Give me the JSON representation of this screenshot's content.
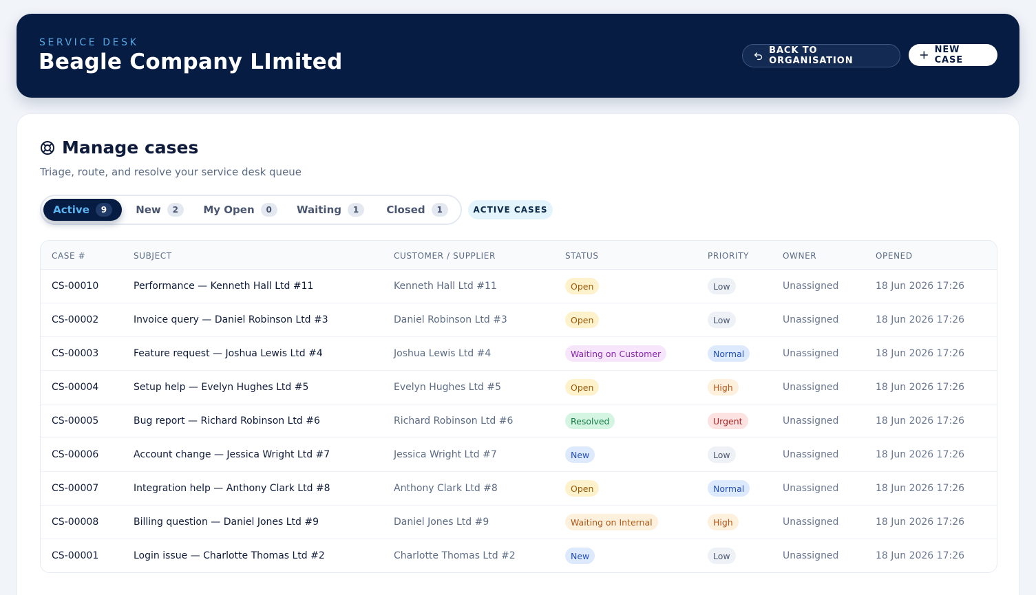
{
  "header": {
    "eyebrow": "SERVICE DESK",
    "org_name": "Beagle Company LImited",
    "back_label": "BACK TO ORGANISATION",
    "new_case_label": "NEW CASE"
  },
  "section": {
    "title": "Manage cases",
    "subtitle": "Triage, route, and resolve your service desk queue",
    "scope_label": "ACTIVE CASES"
  },
  "tabs": [
    {
      "label": "Active",
      "count": "9",
      "active": true
    },
    {
      "label": "New",
      "count": "2",
      "active": false
    },
    {
      "label": "My Open",
      "count": "0",
      "active": false
    },
    {
      "label": "Waiting",
      "count": "1",
      "active": false
    },
    {
      "label": "Closed",
      "count": "1",
      "active": false
    }
  ],
  "table": {
    "columns": [
      "CASE #",
      "SUBJECT",
      "CUSTOMER / SUPPLIER",
      "STATUS",
      "PRIORITY",
      "OWNER",
      "OPENED"
    ],
    "rows": [
      {
        "case": "CS-00010",
        "subject": "Performance — Kenneth Hall Ltd #11",
        "customer": "Kenneth Hall Ltd #11",
        "status": "Open",
        "priority": "Low",
        "owner": "Unassigned",
        "opened": "18 Jun 2026 17:26"
      },
      {
        "case": "CS-00002",
        "subject": "Invoice query — Daniel Robinson Ltd #3",
        "customer": "Daniel Robinson Ltd #3",
        "status": "Open",
        "priority": "Low",
        "owner": "Unassigned",
        "opened": "18 Jun 2026 17:26"
      },
      {
        "case": "CS-00003",
        "subject": "Feature request — Joshua Lewis Ltd #4",
        "customer": "Joshua Lewis Ltd #4",
        "status": "Waiting on Customer",
        "priority": "Normal",
        "owner": "Unassigned",
        "opened": "18 Jun 2026 17:26"
      },
      {
        "case": "CS-00004",
        "subject": "Setup help — Evelyn Hughes Ltd #5",
        "customer": "Evelyn Hughes Ltd #5",
        "status": "Open",
        "priority": "High",
        "owner": "Unassigned",
        "opened": "18 Jun 2026 17:26"
      },
      {
        "case": "CS-00005",
        "subject": "Bug report — Richard Robinson Ltd #6",
        "customer": "Richard Robinson Ltd #6",
        "status": "Resolved",
        "priority": "Urgent",
        "owner": "Unassigned",
        "opened": "18 Jun 2026 17:26"
      },
      {
        "case": "CS-00006",
        "subject": "Account change — Jessica Wright Ltd #7",
        "customer": "Jessica Wright Ltd #7",
        "status": "New",
        "priority": "Low",
        "owner": "Unassigned",
        "opened": "18 Jun 2026 17:26"
      },
      {
        "case": "CS-00007",
        "subject": "Integration help — Anthony Clark Ltd #8",
        "customer": "Anthony Clark Ltd #8",
        "status": "Open",
        "priority": "Normal",
        "owner": "Unassigned",
        "opened": "18 Jun 2026 17:26"
      },
      {
        "case": "CS-00008",
        "subject": "Billing question — Daniel Jones Ltd #9",
        "customer": "Daniel Jones Ltd #9",
        "status": "Waiting on Internal",
        "priority": "High",
        "owner": "Unassigned",
        "opened": "18 Jun 2026 17:26"
      },
      {
        "case": "CS-00001",
        "subject": "Login issue — Charlotte Thomas Ltd #2",
        "customer": "Charlotte Thomas Ltd #2",
        "status": "New",
        "priority": "Low",
        "owner": "Unassigned",
        "opened": "18 Jun 2026 17:26"
      }
    ]
  },
  "icons": {
    "back": "undo-arrow-icon",
    "new_case": "plus-icon",
    "title": "lifebuoy-icon"
  },
  "colors": {
    "navy": "#071c42",
    "accent_blue": "#5aa9e6",
    "status_open": "#fdf2cc",
    "status_waiting_customer": "#f6e5fb",
    "status_waiting_internal": "#fdf0dd",
    "status_resolved": "#d5f5e3",
    "status_new": "#dde9fd",
    "priority_urgent": "#fde2e2"
  }
}
